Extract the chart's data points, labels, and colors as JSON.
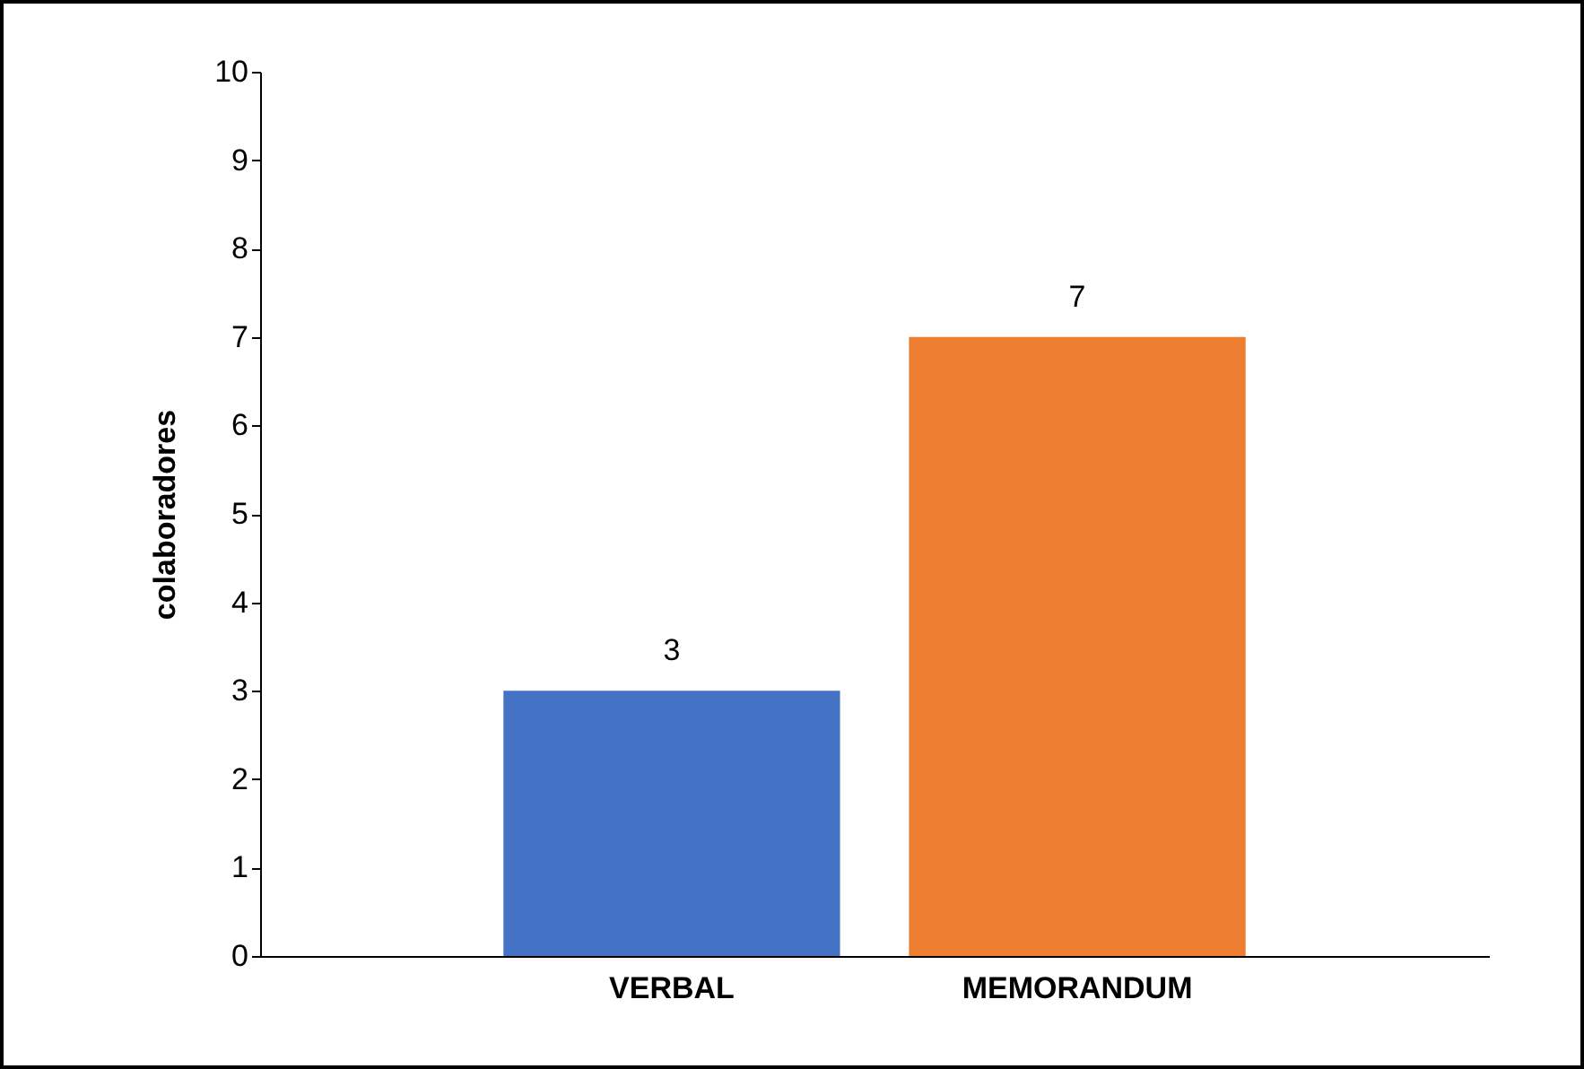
{
  "chart_data": {
    "type": "bar",
    "ylabel": "colaboradores",
    "categories": [
      "VERBAL",
      "MEMORANDUM"
    ],
    "values": [
      3,
      7
    ],
    "colors": [
      "#4472c4",
      "#ed7d31"
    ],
    "ylim": [
      0,
      10
    ],
    "yticks": [
      0,
      1,
      2,
      3,
      4,
      5,
      6,
      7,
      8,
      9,
      10
    ],
    "grid": false,
    "legend": false,
    "data_labels": true
  }
}
